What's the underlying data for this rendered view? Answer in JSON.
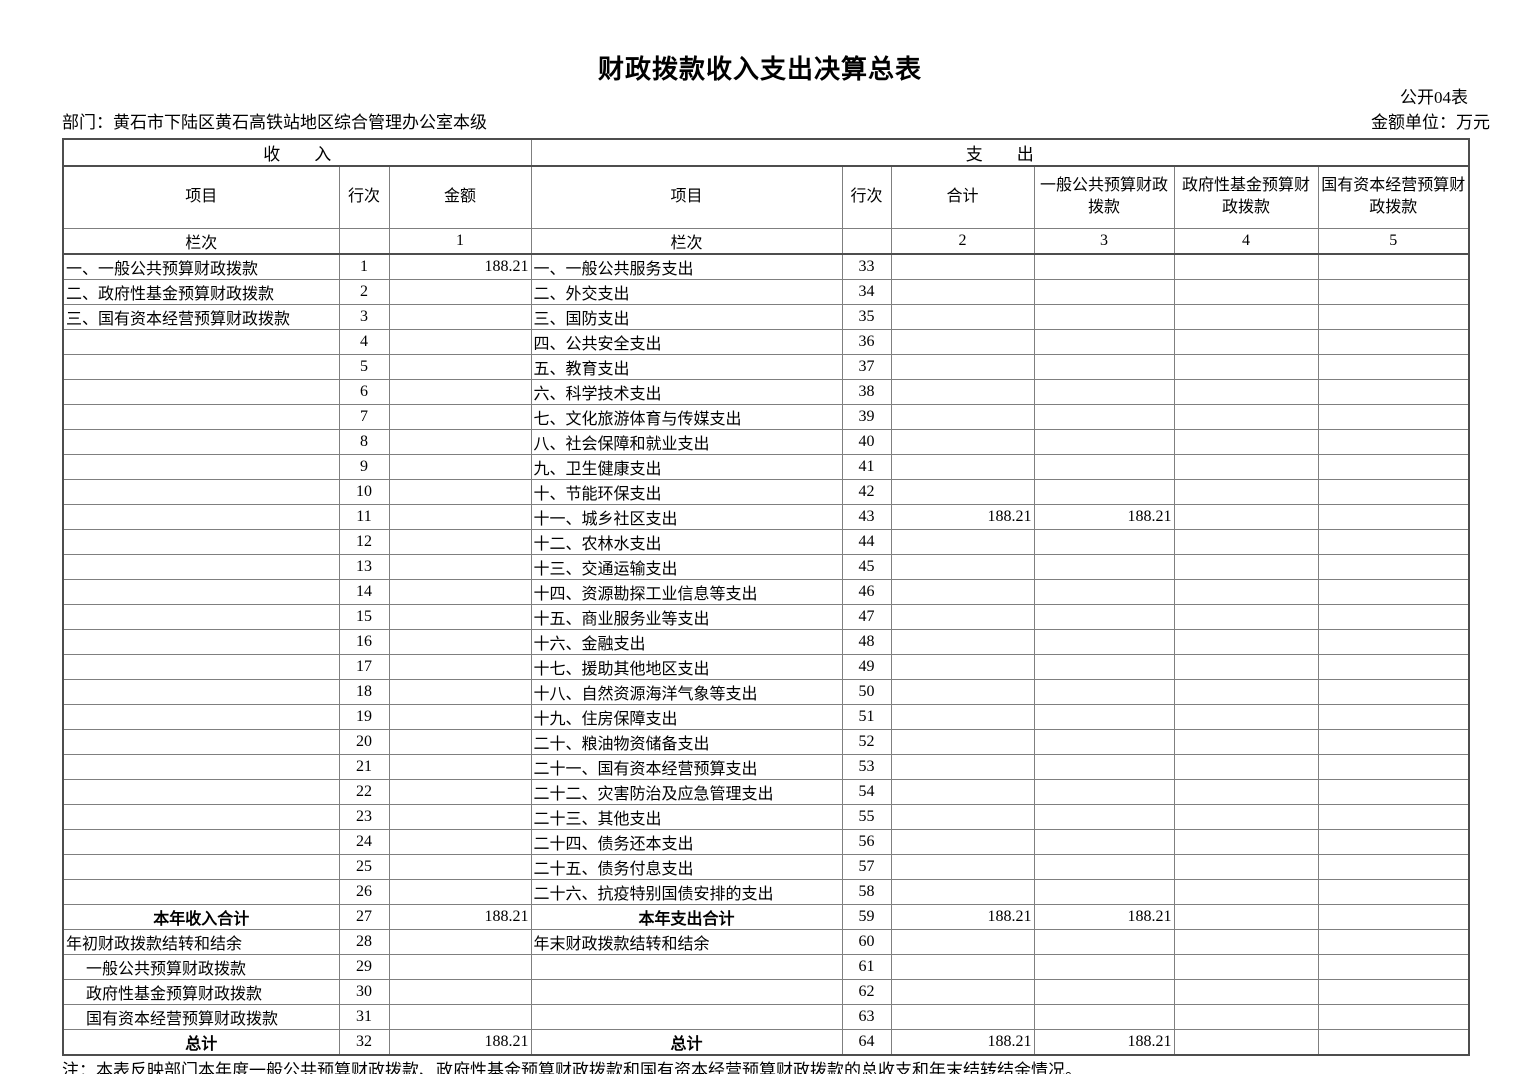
{
  "header": {
    "title": "财政拨款收入支出决算总表",
    "form_code": "公开04表",
    "department": "部门：黄石市下陆区黄石高铁站地区综合管理办公室本级",
    "unit": "金额单位：万元"
  },
  "table": {
    "income_section_header": "收　　入",
    "expense_section_header": "支　　出",
    "columns": [
      "项目",
      "行次",
      "金额",
      "项目",
      "行次",
      "合计",
      "一般公共预算财政拨款",
      "政府性基金预算财政拨款",
      "国有资本经营预算财政拨款"
    ],
    "index_row": [
      "栏次",
      "",
      "1",
      "栏次",
      "",
      "2",
      "3",
      "4",
      "5"
    ],
    "rows": [
      {
        "cells": [
          "一、一般公共预算财政拨款",
          "1",
          "188.21",
          "一、一般公共服务支出",
          "33",
          "",
          "",
          "",
          ""
        ],
        "inStyle": "",
        "exStyle": ""
      },
      {
        "cells": [
          "二、政府性基金预算财政拨款",
          "2",
          "",
          "二、外交支出",
          "34",
          "",
          "",
          "",
          ""
        ],
        "inStyle": "",
        "exStyle": ""
      },
      {
        "cells": [
          "三、国有资本经营预算财政拨款",
          "3",
          "",
          "三、国防支出",
          "35",
          "",
          "",
          "",
          ""
        ],
        "inStyle": "",
        "exStyle": ""
      },
      {
        "cells": [
          "",
          "4",
          "",
          "四、公共安全支出",
          "36",
          "",
          "",
          "",
          ""
        ],
        "inStyle": "",
        "exStyle": ""
      },
      {
        "cells": [
          "",
          "5",
          "",
          "五、教育支出",
          "37",
          "",
          "",
          "",
          ""
        ],
        "inStyle": "",
        "exStyle": ""
      },
      {
        "cells": [
          "",
          "6",
          "",
          "六、科学技术支出",
          "38",
          "",
          "",
          "",
          ""
        ],
        "inStyle": "",
        "exStyle": ""
      },
      {
        "cells": [
          "",
          "7",
          "",
          "七、文化旅游体育与传媒支出",
          "39",
          "",
          "",
          "",
          ""
        ],
        "inStyle": "",
        "exStyle": ""
      },
      {
        "cells": [
          "",
          "8",
          "",
          "八、社会保障和就业支出",
          "40",
          "",
          "",
          "",
          ""
        ],
        "inStyle": "",
        "exStyle": ""
      },
      {
        "cells": [
          "",
          "9",
          "",
          "九、卫生健康支出",
          "41",
          "",
          "",
          "",
          ""
        ],
        "inStyle": "",
        "exStyle": ""
      },
      {
        "cells": [
          "",
          "10",
          "",
          "十、节能环保支出",
          "42",
          "",
          "",
          "",
          ""
        ],
        "inStyle": "",
        "exStyle": ""
      },
      {
        "cells": [
          "",
          "11",
          "",
          "十一、城乡社区支出",
          "43",
          "188.21",
          "188.21",
          "",
          ""
        ],
        "inStyle": "",
        "exStyle": ""
      },
      {
        "cells": [
          "",
          "12",
          "",
          "十二、农林水支出",
          "44",
          "",
          "",
          "",
          ""
        ],
        "inStyle": "",
        "exStyle": ""
      },
      {
        "cells": [
          "",
          "13",
          "",
          "十三、交通运输支出",
          "45",
          "",
          "",
          "",
          ""
        ],
        "inStyle": "",
        "exStyle": ""
      },
      {
        "cells": [
          "",
          "14",
          "",
          "十四、资源勘探工业信息等支出",
          "46",
          "",
          "",
          "",
          ""
        ],
        "inStyle": "",
        "exStyle": ""
      },
      {
        "cells": [
          "",
          "15",
          "",
          "十五、商业服务业等支出",
          "47",
          "",
          "",
          "",
          ""
        ],
        "inStyle": "",
        "exStyle": ""
      },
      {
        "cells": [
          "",
          "16",
          "",
          "十六、金融支出",
          "48",
          "",
          "",
          "",
          ""
        ],
        "inStyle": "",
        "exStyle": ""
      },
      {
        "cells": [
          "",
          "17",
          "",
          "十七、援助其他地区支出",
          "49",
          "",
          "",
          "",
          ""
        ],
        "inStyle": "",
        "exStyle": ""
      },
      {
        "cells": [
          "",
          "18",
          "",
          "十八、自然资源海洋气象等支出",
          "50",
          "",
          "",
          "",
          ""
        ],
        "inStyle": "",
        "exStyle": ""
      },
      {
        "cells": [
          "",
          "19",
          "",
          "十九、住房保障支出",
          "51",
          "",
          "",
          "",
          ""
        ],
        "inStyle": "",
        "exStyle": ""
      },
      {
        "cells": [
          "",
          "20",
          "",
          "二十、粮油物资储备支出",
          "52",
          "",
          "",
          "",
          ""
        ],
        "inStyle": "",
        "exStyle": ""
      },
      {
        "cells": [
          "",
          "21",
          "",
          "二十一、国有资本经营预算支出",
          "53",
          "",
          "",
          "",
          ""
        ],
        "inStyle": "",
        "exStyle": ""
      },
      {
        "cells": [
          "",
          "22",
          "",
          "二十二、灾害防治及应急管理支出",
          "54",
          "",
          "",
          "",
          ""
        ],
        "inStyle": "",
        "exStyle": ""
      },
      {
        "cells": [
          "",
          "23",
          "",
          "二十三、其他支出",
          "55",
          "",
          "",
          "",
          ""
        ],
        "inStyle": "",
        "exStyle": ""
      },
      {
        "cells": [
          "",
          "24",
          "",
          "二十四、债务还本支出",
          "56",
          "",
          "",
          "",
          ""
        ],
        "inStyle": "",
        "exStyle": ""
      },
      {
        "cells": [
          "",
          "25",
          "",
          "二十五、债务付息支出",
          "57",
          "",
          "",
          "",
          ""
        ],
        "inStyle": "",
        "exStyle": ""
      },
      {
        "cells": [
          "",
          "26",
          "",
          "二十六、抗疫特别国债安排的支出",
          "58",
          "",
          "",
          "",
          ""
        ],
        "inStyle": "",
        "exStyle": ""
      },
      {
        "cells": [
          "本年收入合计",
          "27",
          "188.21",
          "本年支出合计",
          "59",
          "188.21",
          "188.21",
          "",
          ""
        ],
        "inStyle": "total",
        "exStyle": "total"
      },
      {
        "cells": [
          "年初财政拨款结转和结余",
          "28",
          "",
          "年末财政拨款结转和结余",
          "60",
          "",
          "",
          "",
          ""
        ],
        "inStyle": "",
        "exStyle": ""
      },
      {
        "cells": [
          "一般公共预算财政拨款",
          "29",
          "",
          "",
          "61",
          "",
          "",
          "",
          ""
        ],
        "inStyle": "indent",
        "exStyle": ""
      },
      {
        "cells": [
          "政府性基金预算财政拨款",
          "30",
          "",
          "",
          "62",
          "",
          "",
          "",
          ""
        ],
        "inStyle": "indent",
        "exStyle": ""
      },
      {
        "cells": [
          "国有资本经营预算财政拨款",
          "31",
          "",
          "",
          "63",
          "",
          "",
          "",
          ""
        ],
        "inStyle": "indent",
        "exStyle": ""
      },
      {
        "cells": [
          "总计",
          "32",
          "188.21",
          "总计",
          "64",
          "188.21",
          "188.21",
          "",
          ""
        ],
        "inStyle": "total",
        "exStyle": "total"
      }
    ]
  },
  "footnote": "注：本表反映部门本年度一般公共预算财政拨款、政府性基金预算财政拨款和国有资本经营预算财政拨款的总收支和年末结转结余情况。",
  "colors": {
    "border": "#7f7f7f",
    "border_strong": "#4d4d4d",
    "text": "#000000"
  }
}
